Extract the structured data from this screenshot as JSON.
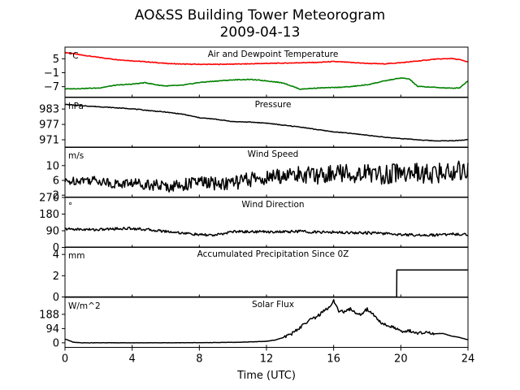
{
  "figure": {
    "title_line1": "AO&SS Building Tower Meteorogram",
    "title_line2": "2009-04-13"
  },
  "chart_data": {
    "type": "line",
    "title": "AO&SS Building Tower Meteorogram",
    "subtitle": "2009-04-13",
    "xlabel": "Time (UTC)",
    "xlim": [
      0,
      24
    ],
    "xticks": [
      0,
      4,
      8,
      12,
      16,
      20,
      24
    ],
    "panels": [
      {
        "title": "Air and Dewpoint Temperature",
        "unit": "°C",
        "ylim": [
          -11.5,
          10
        ],
        "yticks": [
          5,
          -1,
          -7
        ],
        "ytick_labels": [
          "5",
          "−1",
          "−7"
        ],
        "series": [
          {
            "color": "#ff0000",
            "x": [
              0,
              1,
              2,
              3,
              4,
              5,
              6,
              7,
              8,
              9,
              10,
              11,
              12,
              13,
              14,
              15,
              16,
              17,
              18,
              19,
              20,
              21,
              22,
              23,
              23.5,
              24
            ],
            "y": [
              7.7,
              6.6,
              5.6,
              4.7,
              4.1,
              3.6,
              3.0,
              2.7,
              2.6,
              2.6,
              2.7,
              2.8,
              3.0,
              3.1,
              3.3,
              3.4,
              3.8,
              3.4,
              3.0,
              2.8,
              3.3,
              4.0,
              4.8,
              5.1,
              4.6,
              3.6
            ]
          },
          {
            "color": "#008000",
            "x": [
              0,
              1,
              2,
              3,
              4,
              4.8,
              5.5,
              6,
              7,
              8,
              9,
              10,
              11,
              12,
              13,
              14,
              15,
              16,
              17,
              18,
              19,
              19.5,
              20,
              20.5,
              21,
              22,
              23,
              23.5,
              24
            ],
            "y": [
              -8.0,
              -7.8,
              -7.6,
              -6.4,
              -5.9,
              -5.3,
              -6.3,
              -6.7,
              -6.4,
              -5.2,
              -4.6,
              -4.1,
              -3.9,
              -4.5,
              -5.4,
              -8.1,
              -7.6,
              -7.4,
              -7.0,
              -6.2,
              -4.6,
              -3.9,
              -3.3,
              -3.7,
              -6.9,
              -7.3,
              -7.7,
              -7.5,
              -4.5
            ]
          }
        ]
      },
      {
        "title": "Pressure",
        "unit": "hPa",
        "ylim": [
          968,
          987.5
        ],
        "yticks": [
          983,
          977,
          971
        ],
        "ytick_labels": [
          "983",
          "977",
          "971"
        ],
        "series": [
          {
            "color": "#000000",
            "x": [
              0,
              1,
              2,
              3,
              4,
              5,
              6,
              7,
              8,
              9,
              10,
              11,
              12,
              13,
              14,
              15,
              16,
              17,
              18,
              19,
              20,
              21,
              22,
              23,
              24
            ],
            "y": [
              984.8,
              984.3,
              983.9,
              983.5,
              983.1,
              982.4,
              981.8,
              981.0,
              979.6,
              979.0,
              978.1,
              977.9,
              977.5,
              976.7,
              976.0,
              975.0,
              974.1,
              973.5,
              972.8,
              972.0,
              971.5,
              971.0,
              970.6,
              970.6,
              971.0
            ]
          }
        ]
      },
      {
        "title": "Wind Speed",
        "unit": "m/s",
        "ylim": [
          1.5,
          15
        ],
        "yticks": [
          10,
          6,
          2
        ],
        "ytick_labels": [
          "10",
          "6",
          "2"
        ],
        "series": [
          {
            "color": "#000000",
            "x": [
              0,
              1,
              2,
              3,
              4,
              5,
              6,
              7,
              8,
              9,
              10,
              11,
              12,
              13,
              14,
              15,
              16,
              17,
              18,
              19,
              20,
              21,
              22,
              23,
              24
            ],
            "y": [
              5.5,
              6.2,
              6.0,
              5.0,
              5.3,
              5.0,
              4.3,
              4.8,
              5.6,
              5.0,
              5.3,
              6.2,
              6.6,
              7.3,
              7.6,
              7.2,
              8.1,
              7.8,
              8.0,
              7.5,
              8.3,
              7.8,
              7.5,
              8.6,
              9.1
            ]
          }
        ]
      },
      {
        "title": "Wind Direction",
        "unit": "°",
        "ylim": [
          0,
          270
        ],
        "yticks": [
          270,
          180,
          90,
          0
        ],
        "ytick_labels": [
          "270",
          "180",
          "90",
          "0"
        ],
        "series": [
          {
            "color": "#000000",
            "x": [
              0,
              1,
              2,
              3,
              4,
              5,
              6,
              7,
              8,
              9,
              10,
              11,
              12,
              13,
              14,
              15,
              16,
              17,
              18,
              19,
              20,
              21,
              22,
              23,
              24
            ],
            "y": [
              100,
              97,
              96,
              101,
              103,
              95,
              87,
              78,
              68,
              66,
              86,
              85,
              85,
              84,
              87,
              82,
              82,
              80,
              79,
              75,
              70,
              67,
              67,
              72,
              70
            ]
          }
        ]
      },
      {
        "title": "Accumulated Precipitation Since 0Z",
        "unit": "mm",
        "ylim": [
          0,
          4.7
        ],
        "yticks": [
          4,
          2,
          0
        ],
        "ytick_labels": [
          "4",
          "2",
          "0"
        ],
        "series": [
          {
            "color": "#000000",
            "x": [
              0,
              19.75,
              19.76,
              24
            ],
            "y": [
              0,
              0,
              2.54,
              2.54
            ]
          }
        ]
      },
      {
        "title": "Solar Flux",
        "unit": "W/m^2",
        "ylim": [
          -30,
          300
        ],
        "yticks": [
          188,
          94,
          0
        ],
        "ytick_labels": [
          "188",
          "94",
          "0"
        ],
        "series": [
          {
            "color": "#000000",
            "x": [
              0,
              0.5,
              1,
              2,
              4,
              6,
              8,
              9,
              10,
              11,
              12,
              12.5,
              13,
              13.5,
              14,
              14.5,
              15,
              15.3,
              15.7,
              16,
              16.3,
              16.7,
              17,
              17.3,
              17.6,
              18,
              18.3,
              18.6,
              19,
              19.3,
              19.7,
              20,
              20.5,
              21,
              21.5,
              22,
              22.5,
              23,
              23.5,
              24
            ],
            "y": [
              25,
              4,
              0,
              0,
              0,
              0,
              1,
              2,
              3,
              6,
              10,
              18,
              35,
              60,
              102,
              148,
              172,
              200,
              230,
              278,
              210,
              205,
              225,
              200,
              188,
              222,
              195,
              150,
              120,
              115,
              95,
              70,
              80,
              65,
              72,
              60,
              62,
              45,
              35,
              20
            ]
          }
        ]
      }
    ]
  }
}
